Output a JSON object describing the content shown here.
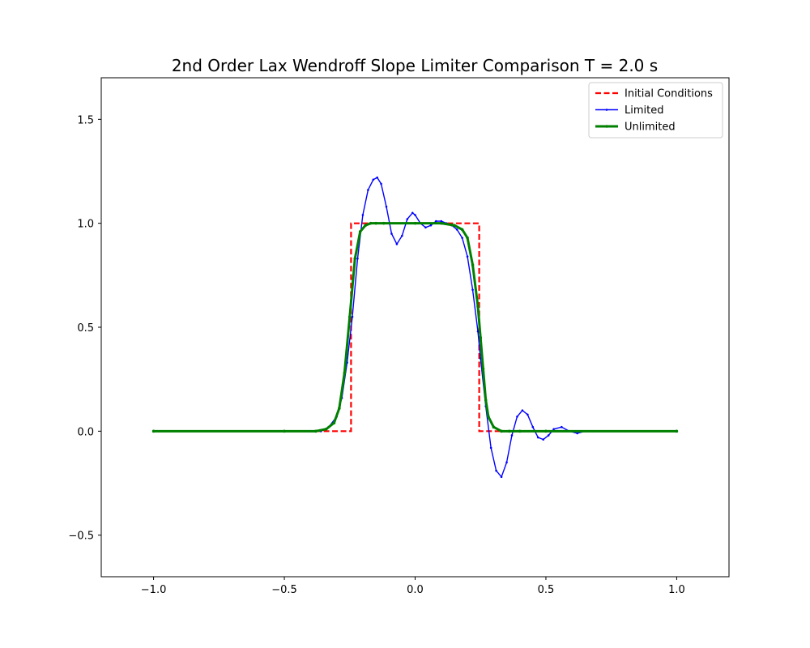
{
  "chart_data": {
    "type": "line",
    "title": "2nd Order Lax Wendroff Slope Limiter Comparison T = 2.0 s",
    "xlabel": "",
    "ylabel": "",
    "xlim": [
      -1.2,
      1.2
    ],
    "ylim": [
      -0.7,
      1.7
    ],
    "xticks": [
      -1.0,
      -0.5,
      0.0,
      0.5,
      1.0
    ],
    "xtick_labels": [
      "−1.0",
      "−0.5",
      "0.0",
      "0.5",
      "1.0"
    ],
    "yticks": [
      -0.5,
      0.0,
      0.5,
      1.0,
      1.5
    ],
    "ytick_labels": [
      "−0.5",
      "0.0",
      "0.5",
      "1.0",
      "1.5"
    ],
    "grid": false,
    "legend_position": "top-right",
    "series": [
      {
        "name": "Initial Conditions",
        "color": "#ff0000",
        "style": "dashed",
        "x": [
          -1.0,
          -0.245,
          -0.245,
          0.245,
          0.245,
          1.0
        ],
        "y": [
          0.0,
          0.0,
          1.0,
          1.0,
          0.0,
          0.0
        ]
      },
      {
        "name": "Limited",
        "color": "#0000ff",
        "style": "solid-markers",
        "x": [
          -1.0,
          -0.5,
          -0.4,
          -0.36,
          -0.33,
          -0.3,
          -0.28,
          -0.26,
          -0.24,
          -0.22,
          -0.2,
          -0.18,
          -0.16,
          -0.145,
          -0.13,
          -0.11,
          -0.09,
          -0.07,
          -0.05,
          -0.03,
          -0.01,
          0.0,
          0.02,
          0.04,
          0.06,
          0.08,
          0.1,
          0.12,
          0.14,
          0.16,
          0.18,
          0.2,
          0.22,
          0.24,
          0.25,
          0.27,
          0.29,
          0.31,
          0.33,
          0.35,
          0.37,
          0.39,
          0.41,
          0.43,
          0.45,
          0.47,
          0.49,
          0.51,
          0.53,
          0.56,
          0.59,
          0.62,
          0.65,
          0.68,
          0.72,
          0.8,
          1.0
        ],
        "y": [
          0.0,
          0.0,
          0.0,
          0.0,
          0.02,
          0.07,
          0.16,
          0.33,
          0.55,
          0.83,
          1.04,
          1.16,
          1.21,
          1.22,
          1.19,
          1.08,
          0.95,
          0.9,
          0.94,
          1.02,
          1.05,
          1.04,
          1.0,
          0.98,
          0.99,
          1.01,
          1.01,
          1.0,
          0.99,
          0.97,
          0.93,
          0.84,
          0.68,
          0.48,
          0.35,
          0.12,
          -0.08,
          -0.19,
          -0.22,
          -0.15,
          -0.02,
          0.07,
          0.1,
          0.08,
          0.02,
          -0.03,
          -0.04,
          -0.02,
          0.01,
          0.02,
          0.0,
          -0.01,
          0.0,
          0.0,
          0.0,
          0.0,
          0.0
        ]
      },
      {
        "name": "Unlimited",
        "color": "#008000",
        "style": "solid-markers-thick",
        "x": [
          -1.0,
          -0.5,
          -0.38,
          -0.34,
          -0.31,
          -0.29,
          -0.27,
          -0.25,
          -0.23,
          -0.21,
          -0.19,
          -0.17,
          -0.15,
          -0.12,
          0.0,
          0.1,
          0.15,
          0.18,
          0.2,
          0.22,
          0.24,
          0.25,
          0.26,
          0.27,
          0.28,
          0.3,
          0.33,
          0.36,
          0.4,
          0.5,
          1.0
        ],
        "y": [
          0.0,
          0.0,
          0.0,
          0.01,
          0.04,
          0.11,
          0.28,
          0.55,
          0.83,
          0.96,
          0.99,
          1.0,
          1.0,
          1.0,
          1.0,
          1.0,
          0.99,
          0.97,
          0.93,
          0.8,
          0.6,
          0.45,
          0.3,
          0.15,
          0.07,
          0.02,
          0.0,
          0.0,
          0.0,
          0.0,
          0.0
        ]
      }
    ]
  }
}
